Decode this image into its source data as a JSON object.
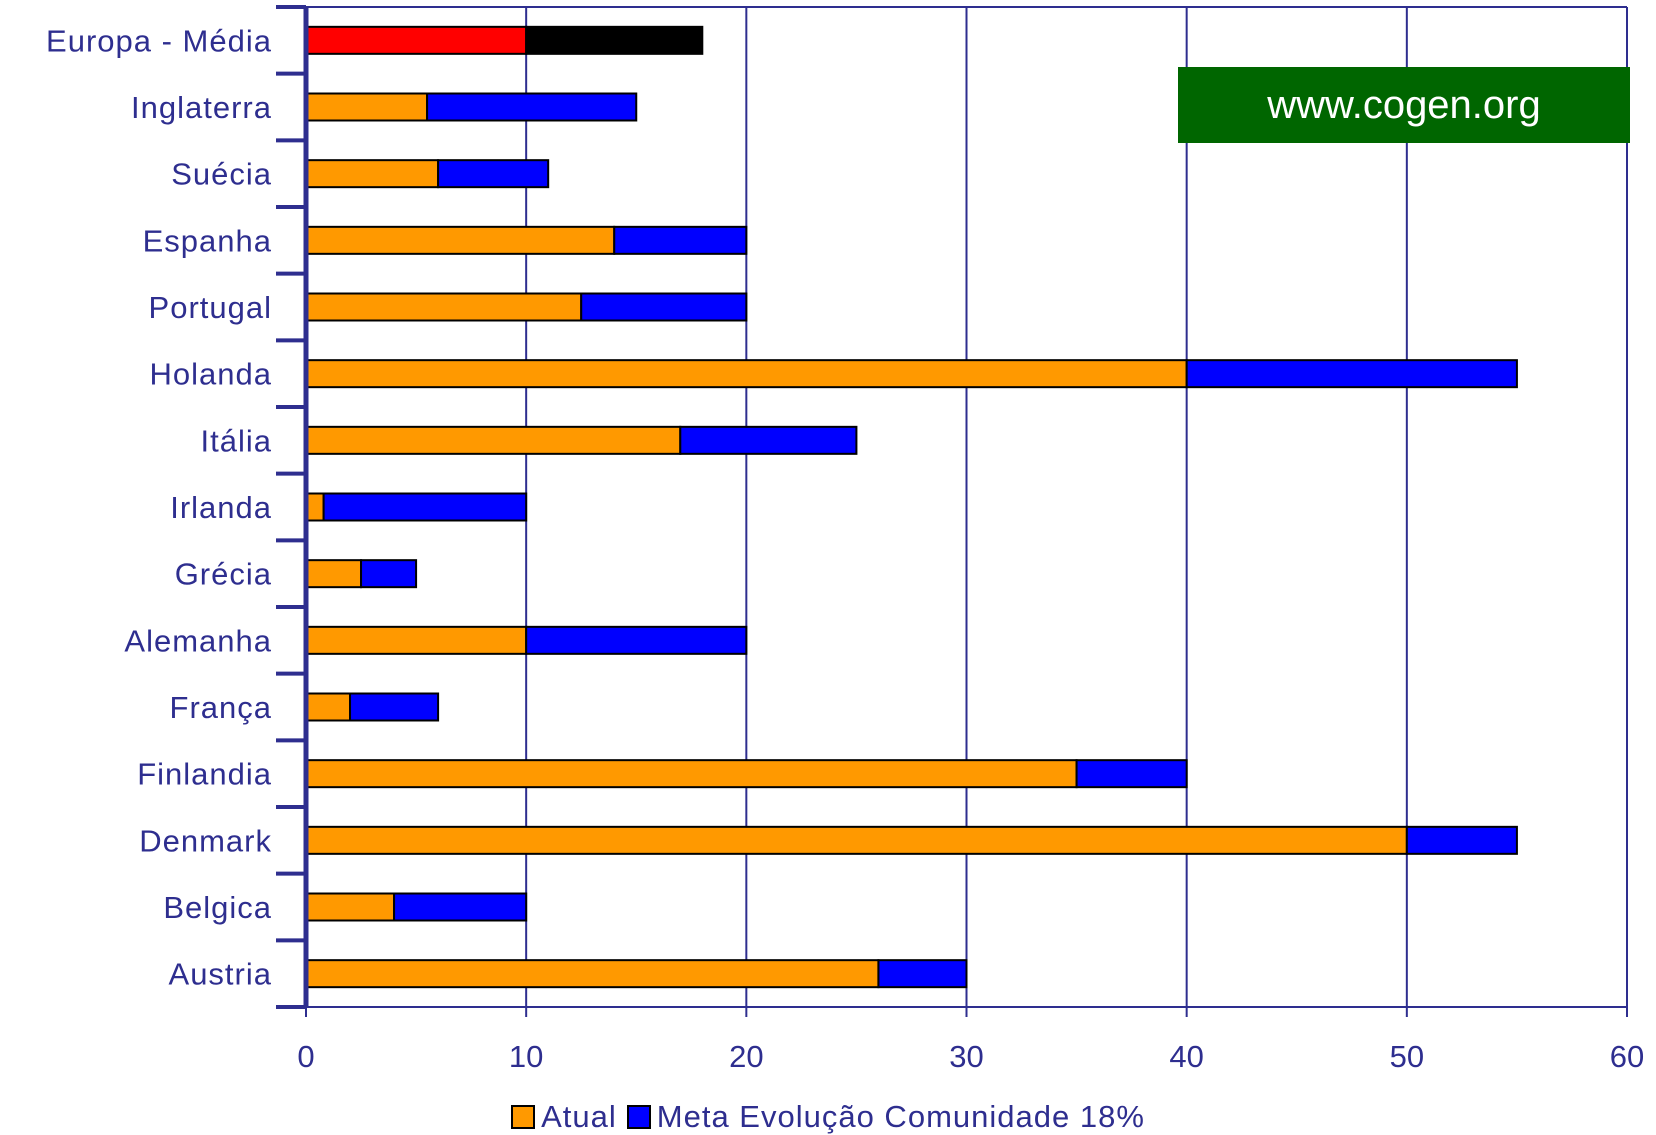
{
  "chart_data": {
    "type": "bar",
    "orientation": "horizontal",
    "stacked": true,
    "categories": [
      "Europa - Média",
      "Inglaterra",
      "Suécia",
      "Espanha",
      "Portugal",
      "Holanda",
      "Itália",
      "Irlanda",
      "Grécia",
      "Alemanha",
      "França",
      "Finlandia",
      "Denmark",
      "Belgica",
      "Austria"
    ],
    "series": [
      {
        "name": "Atual",
        "color": "#FF9900",
        "values": [
          10,
          5.5,
          6,
          14,
          12.5,
          40,
          17,
          0.8,
          2.5,
          10,
          2,
          35,
          50,
          4,
          26
        ]
      },
      {
        "name": "Meta Evolução Comunidade 18%",
        "color": "#0000FF",
        "values": [
          8,
          9.5,
          5,
          6,
          7.5,
          15,
          8,
          9.2,
          2.5,
          10,
          4,
          5,
          5,
          6,
          4
        ]
      }
    ],
    "highlight": {
      "category": "Europa - Média",
      "colors": [
        "#FF0000",
        "#000000"
      ]
    },
    "xlim": [
      0,
      60
    ],
    "xticks": [
      "0",
      "10",
      "20",
      "30",
      "40",
      "50",
      "60"
    ],
    "grid": "vertical",
    "legend_position": "bottom",
    "axis_color": "#2E2E8F",
    "label_color": "#2E2E8F"
  },
  "banner": {
    "text": "www.cogen.org",
    "color": "#006600"
  }
}
